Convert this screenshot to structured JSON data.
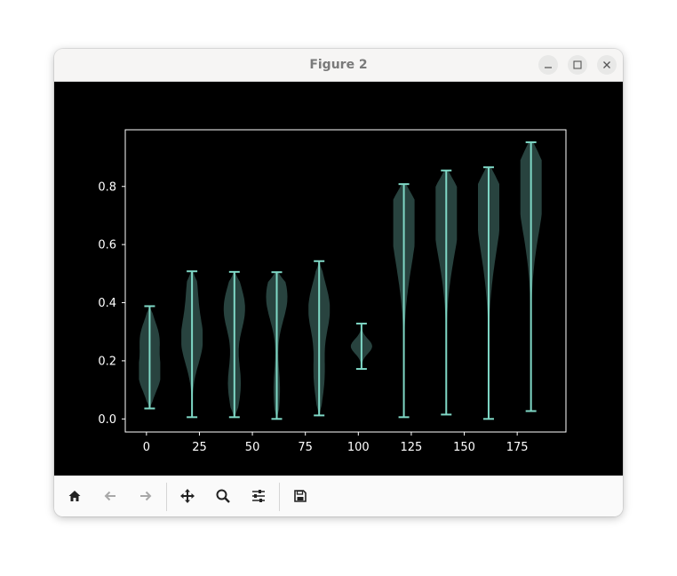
{
  "window": {
    "title": "Figure 2"
  },
  "toolbar": {
    "buttons": [
      "home-icon",
      "back-arrow-icon",
      "forward-arrow-icon",
      "pan-icon",
      "zoom-icon",
      "configure-subplots-icon",
      "save-icon"
    ]
  },
  "colors": {
    "background": "#000000",
    "violin_fill": "#2f4f4a",
    "violin_lines": "#7fd8c6",
    "axes": "#ffffff"
  },
  "chart_data": {
    "type": "violin",
    "title": "",
    "xlabel": "",
    "ylabel": "",
    "xlim": [
      -10,
      198
    ],
    "ylim": [
      -0.045,
      0.995
    ],
    "xticks": [
      0,
      25,
      50,
      75,
      100,
      125,
      150,
      175
    ],
    "yticks": [
      0.0,
      0.2,
      0.4,
      0.6,
      0.8
    ],
    "ytick_labels": [
      "0.0",
      "0.2",
      "0.4",
      "0.6",
      "0.8"
    ],
    "series": [
      {
        "x": 1.5,
        "min": 0.036,
        "max": 0.388,
        "peaks": [
          [
            0.15,
            1.0
          ],
          [
            0.28,
            0.85
          ]
        ]
      },
      {
        "x": 21.5,
        "min": 0.006,
        "max": 0.508,
        "peaks": [
          [
            0.27,
            1.0
          ],
          [
            0.45,
            0.45
          ]
        ]
      },
      {
        "x": 41.5,
        "min": 0.006,
        "max": 0.506,
        "peaks": [
          [
            0.38,
            1.0
          ],
          [
            0.12,
            0.6
          ]
        ]
      },
      {
        "x": 61.5,
        "min": 0.0,
        "max": 0.505,
        "peaks": [
          [
            0.42,
            1.0
          ],
          [
            0.1,
            0.3
          ]
        ]
      },
      {
        "x": 81.5,
        "min": 0.012,
        "max": 0.543,
        "peaks": [
          [
            0.38,
            1.0
          ],
          [
            0.15,
            0.5
          ]
        ]
      },
      {
        "x": 101.5,
        "min": 0.172,
        "max": 0.328,
        "peaks": [
          [
            0.25,
            1.0
          ]
        ]
      },
      {
        "x": 121.5,
        "min": 0.006,
        "max": 0.808,
        "peaks": [
          [
            0.72,
            1.0
          ],
          [
            0.55,
            0.4
          ]
        ]
      },
      {
        "x": 141.5,
        "min": 0.015,
        "max": 0.855,
        "peaks": [
          [
            0.75,
            1.0
          ],
          [
            0.6,
            0.4
          ]
        ]
      },
      {
        "x": 161.5,
        "min": 0.0,
        "max": 0.866,
        "peaks": [
          [
            0.78,
            1.0
          ],
          [
            0.6,
            0.4
          ]
        ]
      },
      {
        "x": 181.5,
        "min": 0.027,
        "max": 0.952,
        "peaks": [
          [
            0.85,
            1.0
          ],
          [
            0.7,
            0.4
          ]
        ]
      }
    ]
  }
}
